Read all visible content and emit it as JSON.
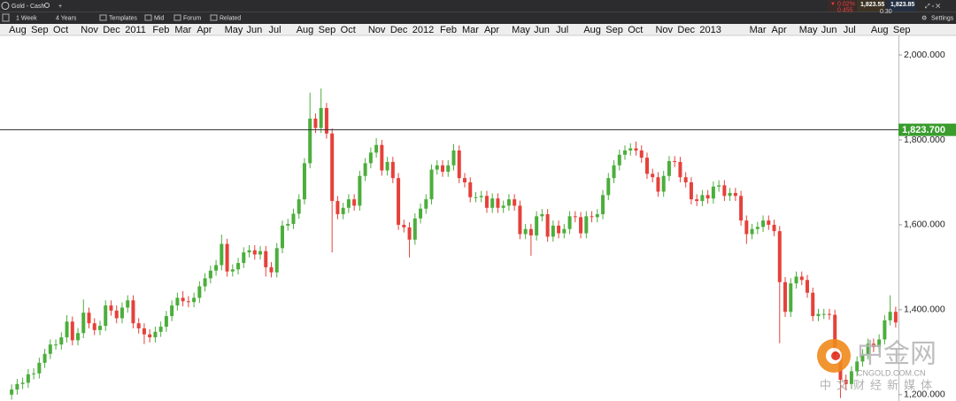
{
  "toolbar": {
    "instrument": "Gold - Cash",
    "interval": "1 Week",
    "range": "4 Years",
    "buttons": [
      "Templates",
      "Mid",
      "Forum",
      "Related"
    ],
    "settings": "Settings"
  },
  "quote": {
    "change": "0.02%",
    "change_abs": "0.455",
    "bid": "1,823.55",
    "ask": "1,823.85",
    "spread": "0.30"
  },
  "watermark": {
    "name": "中金网",
    "url": "CNGOLD.COM.CN",
    "tagline": "中文财经新媒体"
  },
  "chart_data": {
    "type": "candlestick",
    "up_color": "#4cae3c",
    "down_color": "#e5413a",
    "ylim": [
      1185,
      2046
    ],
    "yticks": [
      {
        "value": 1200,
        "label": "1,200.000"
      },
      {
        "value": 1400,
        "label": "1,400.000"
      },
      {
        "value": 1600,
        "label": "1,600.000"
      },
      {
        "value": 1800,
        "label": "1,800.000"
      },
      {
        "value": 2000,
        "label": "2,000.000"
      }
    ],
    "reference_line": {
      "value": 1823.7,
      "label": "1,823.700",
      "color": "#3a9d2e"
    },
    "categories": [
      "Aug",
      null,
      null,
      null,
      "Sep",
      null,
      null,
      null,
      "Oct",
      null,
      null,
      null,
      null,
      "Nov",
      null,
      null,
      null,
      "Dec",
      null,
      null,
      null,
      "2011",
      null,
      null,
      null,
      null,
      "Feb",
      null,
      null,
      null,
      "Mar",
      null,
      null,
      null,
      "Apr",
      null,
      null,
      null,
      null,
      "May",
      null,
      null,
      null,
      "Jun",
      null,
      null,
      null,
      "Jul",
      null,
      null,
      null,
      null,
      "Aug",
      null,
      null,
      null,
      "Sep",
      null,
      null,
      null,
      "Oct",
      null,
      null,
      null,
      null,
      "Nov",
      null,
      null,
      null,
      "Dec",
      null,
      null,
      null,
      "2012",
      null,
      null,
      null,
      null,
      "Feb",
      null,
      null,
      null,
      "Mar",
      null,
      null,
      null,
      "Apr",
      null,
      null,
      null,
      null,
      "May",
      null,
      null,
      null,
      "Jun",
      null,
      null,
      null,
      "Jul",
      null,
      null,
      null,
      null,
      "Aug",
      null,
      null,
      null,
      "Sep",
      null,
      null,
      null,
      "Oct",
      null,
      null,
      null,
      null,
      "Nov",
      null,
      null,
      null,
      "Dec",
      null,
      null,
      null,
      "2013",
      null,
      null,
      null,
      null,
      null,
      null,
      null,
      null,
      "Mar",
      null,
      null,
      null,
      "Apr",
      null,
      null,
      null,
      null,
      "May",
      null,
      null,
      null,
      "Jun",
      null,
      null,
      null,
      "Jul",
      null,
      null,
      null,
      null,
      "Aug",
      null,
      null,
      null,
      "Sep"
    ],
    "open": [
      1200,
      1212,
      1225,
      1228,
      1248,
      1250,
      1275,
      1296,
      1318,
      1318,
      1335,
      1372,
      1328,
      1345,
      1393,
      1368,
      1352,
      1362,
      1410,
      1398,
      1380,
      1405,
      1422,
      1368,
      1356,
      1342,
      1335,
      1348,
      1360,
      1385,
      1410,
      1428,
      1420,
      1418,
      1428,
      1455,
      1474,
      1492,
      1505,
      1555,
      1490,
      1495,
      1510,
      1535,
      1540,
      1530,
      1538,
      1500,
      1488,
      1545,
      1598,
      1602,
      1626,
      1660,
      1745,
      1850,
      1828,
      1875,
      1815,
      1656,
      1625,
      1640,
      1660,
      1645,
      1715,
      1745,
      1770,
      1788,
      1728,
      1748,
      1710,
      1600,
      1594,
      1565,
      1615,
      1638,
      1660,
      1730,
      1740,
      1725,
      1740,
      1775,
      1710,
      1700,
      1665,
      1665,
      1668,
      1640,
      1662,
      1640,
      1645,
      1660,
      1645,
      1578,
      1590,
      1575,
      1620,
      1625,
      1572,
      1598,
      1580,
      1590,
      1620,
      1618,
      1580,
      1620,
      1618,
      1625,
      1670,
      1710,
      1740,
      1765,
      1775,
      1780,
      1775,
      1758,
      1720,
      1712,
      1678,
      1715,
      1750,
      1748,
      1712,
      1700,
      1660,
      1656,
      1670,
      1662,
      1690,
      1693,
      1668,
      1675,
      1668,
      1610,
      1578,
      1590,
      1595,
      1610,
      1600,
      1585,
      1465,
      1395,
      1462,
      1478,
      1470,
      1440,
      1385,
      1390,
      1390,
      1388,
      1295,
      1235,
      1225,
      1255,
      1278,
      1295,
      1320,
      1312,
      1330,
      1375,
      1395
    ],
    "high": [
      1224,
      1237,
      1240,
      1260,
      1262,
      1287,
      1308,
      1330,
      1330,
      1347,
      1387,
      1384,
      1357,
      1424,
      1405,
      1380,
      1374,
      1422,
      1422,
      1410,
      1417,
      1434,
      1434,
      1380,
      1368,
      1354,
      1360,
      1372,
      1397,
      1422,
      1440,
      1444,
      1432,
      1440,
      1467,
      1486,
      1504,
      1517,
      1577,
      1567,
      1507,
      1522,
      1547,
      1552,
      1552,
      1550,
      1550,
      1512,
      1557,
      1610,
      1614,
      1638,
      1672,
      1757,
      1911,
      1862,
      1921,
      1887,
      1827,
      1668,
      1652,
      1672,
      1672,
      1727,
      1757,
      1782,
      1804,
      1800,
      1760,
      1760,
      1722,
      1612,
      1606,
      1627,
      1650,
      1672,
      1742,
      1752,
      1752,
      1752,
      1790,
      1787,
      1722,
      1712,
      1677,
      1680,
      1680,
      1674,
      1674,
      1657,
      1672,
      1672,
      1657,
      1602,
      1602,
      1632,
      1637,
      1637,
      1610,
      1610,
      1602,
      1632,
      1632,
      1630,
      1632,
      1632,
      1637,
      1682,
      1722,
      1752,
      1777,
      1787,
      1792,
      1796,
      1787,
      1770,
      1732,
      1724,
      1727,
      1762,
      1762,
      1760,
      1724,
      1712,
      1672,
      1682,
      1682,
      1702,
      1705,
      1705,
      1687,
      1687,
      1680,
      1622,
      1602,
      1607,
      1622,
      1622,
      1612,
      1597,
      1477,
      1474,
      1490,
      1490,
      1482,
      1452,
      1402,
      1402,
      1402,
      1400,
      1307,
      1247,
      1267,
      1290,
      1307,
      1332,
      1332,
      1342,
      1387,
      1434,
      1407
    ],
    "low": [
      1188,
      1200,
      1213,
      1216,
      1236,
      1238,
      1263,
      1284,
      1306,
      1306,
      1323,
      1316,
      1316,
      1333,
      1356,
      1340,
      1340,
      1350,
      1386,
      1368,
      1368,
      1393,
      1356,
      1344,
      1319,
      1323,
      1323,
      1336,
      1348,
      1373,
      1398,
      1408,
      1406,
      1406,
      1416,
      1443,
      1462,
      1480,
      1493,
      1478,
      1478,
      1483,
      1498,
      1523,
      1518,
      1518,
      1478,
      1476,
      1476,
      1533,
      1586,
      1590,
      1614,
      1648,
      1733,
      1816,
      1816,
      1803,
      1535,
      1613,
      1613,
      1628,
      1633,
      1633,
      1703,
      1733,
      1758,
      1716,
      1716,
      1698,
      1588,
      1582,
      1523,
      1553,
      1603,
      1626,
      1648,
      1718,
      1713,
      1713,
      1728,
      1698,
      1688,
      1653,
      1653,
      1653,
      1628,
      1628,
      1628,
      1628,
      1633,
      1633,
      1566,
      1566,
      1527,
      1563,
      1608,
      1560,
      1560,
      1568,
      1568,
      1578,
      1606,
      1568,
      1568,
      1606,
      1606,
      1613,
      1658,
      1698,
      1728,
      1753,
      1763,
      1763,
      1746,
      1708,
      1700,
      1666,
      1666,
      1703,
      1736,
      1700,
      1688,
      1648,
      1644,
      1644,
      1650,
      1650,
      1678,
      1656,
      1656,
      1656,
      1598,
      1555,
      1566,
      1578,
      1583,
      1588,
      1573,
      1321,
      1383,
      1383,
      1450,
      1458,
      1428,
      1373,
      1373,
      1378,
      1376,
      1283,
      1192,
      1210,
      1213,
      1243,
      1266,
      1283,
      1300,
      1300,
      1318,
      1363,
      1358
    ],
    "close": [
      1212,
      1225,
      1228,
      1248,
      1250,
      1275,
      1296,
      1318,
      1318,
      1335,
      1372,
      1328,
      1345,
      1393,
      1368,
      1352,
      1362,
      1410,
      1398,
      1380,
      1405,
      1422,
      1368,
      1356,
      1342,
      1335,
      1348,
      1360,
      1385,
      1410,
      1428,
      1420,
      1418,
      1428,
      1455,
      1474,
      1492,
      1505,
      1555,
      1490,
      1495,
      1510,
      1535,
      1540,
      1530,
      1538,
      1500,
      1488,
      1545,
      1598,
      1602,
      1626,
      1660,
      1745,
      1850,
      1828,
      1875,
      1815,
      1656,
      1625,
      1640,
      1660,
      1645,
      1715,
      1745,
      1770,
      1788,
      1728,
      1748,
      1710,
      1600,
      1594,
      1565,
      1615,
      1638,
      1660,
      1730,
      1740,
      1725,
      1740,
      1775,
      1710,
      1700,
      1665,
      1665,
      1668,
      1640,
      1662,
      1640,
      1645,
      1660,
      1645,
      1578,
      1590,
      1575,
      1620,
      1625,
      1572,
      1598,
      1580,
      1590,
      1620,
      1618,
      1580,
      1620,
      1618,
      1625,
      1670,
      1710,
      1740,
      1765,
      1775,
      1780,
      1775,
      1758,
      1720,
      1712,
      1678,
      1715,
      1750,
      1748,
      1712,
      1700,
      1660,
      1656,
      1670,
      1662,
      1690,
      1693,
      1668,
      1675,
      1668,
      1610,
      1578,
      1590,
      1595,
      1610,
      1600,
      1585,
      1465,
      1395,
      1462,
      1478,
      1470,
      1440,
      1385,
      1390,
      1390,
      1388,
      1295,
      1235,
      1225,
      1255,
      1278,
      1295,
      1320,
      1312,
      1330,
      1375,
      1395,
      1370
    ]
  }
}
